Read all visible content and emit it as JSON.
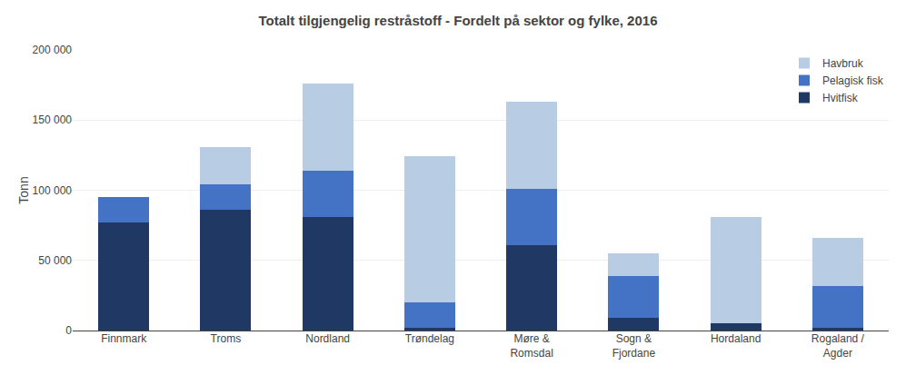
{
  "chart_data": {
    "type": "bar",
    "title": "Totalt tilgjengelig restråstoff - Fordelt på sektor og fylke, 2016",
    "ylabel": "Tonn",
    "categories": [
      "Finnmark",
      "Troms",
      "Nordland",
      "Trøndelag",
      "Møre &\nRomsdal",
      "Sogn &\nFjordane",
      "Hordaland",
      "Rogaland /\nAgder"
    ],
    "series": [
      {
        "name": "Hvitfisk",
        "color": "#1F3864",
        "values": [
          77000,
          86000,
          81000,
          2000,
          61000,
          9000,
          5000,
          2000
        ]
      },
      {
        "name": "Pelagisk fisk",
        "color": "#4472C4",
        "values": [
          18000,
          18000,
          33000,
          18000,
          40000,
          30000,
          0,
          30000
        ]
      },
      {
        "name": "Havbruk",
        "color": "#B8CCE4",
        "values": [
          0,
          27000,
          62000,
          104000,
          62000,
          16000,
          76000,
          34000
        ]
      }
    ],
    "stacked": true,
    "ylim": [
      0,
      200000
    ],
    "yticks": [
      0,
      {
        "value": 50000,
        "label": "50 000"
      },
      {
        "value": 100000,
        "label": "100 000"
      },
      {
        "value": 150000,
        "label": "150 000"
      },
      {
        "value": 200000,
        "label": "200 000"
      }
    ],
    "grid": true,
    "legend": "upper right"
  }
}
